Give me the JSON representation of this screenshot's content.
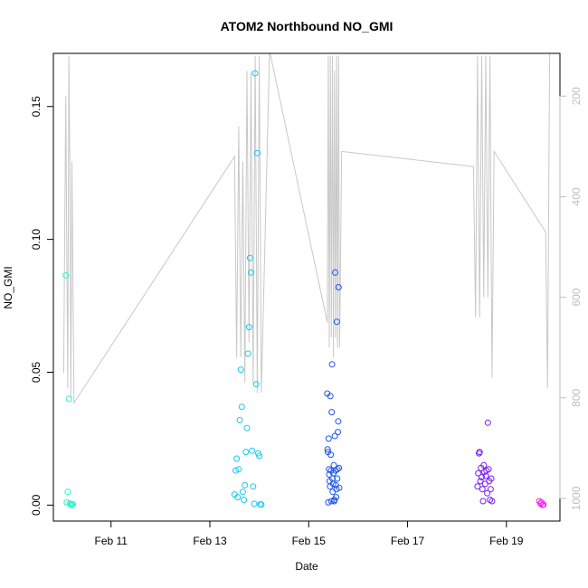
{
  "chart_data": {
    "type": "scatter",
    "title": "ATOM2 Northbound NO_GMI",
    "xlabel": "Date",
    "ylabel": "NO_GMI",
    "x_ticks": [
      "Feb 11",
      "Feb 13",
      "Feb 15",
      "Feb 17",
      "Feb 19"
    ],
    "y_ticks": [
      "0.00",
      "0.05",
      "0.10",
      "0.15"
    ],
    "y_right_ticks": [
      "200",
      "400",
      "600",
      "800",
      "1000"
    ],
    "y_right_axis": "pressure (inverted)",
    "xlim": [
      "2017-02-09 20:00",
      "2017-02-20 02:00"
    ],
    "ylim": [
      -0.006,
      0.17
    ],
    "y_right_lim": [
      1045,
      115
    ],
    "grid": false,
    "colors": {
      "line": "#c8c8c8",
      "series_palette": [
        "#00ffb0",
        "#00d8ff",
        "#0040ff",
        "#8a00ff",
        "#ff00ff"
      ],
      "axis": "#000000",
      "right_axis": "#bebebe"
    },
    "series": [
      {
        "color": "#22f5c8",
        "points": [
          [
            "2017-02-10 02:00",
            0.0865
          ],
          [
            "2017-02-10 02:30",
            0.001
          ],
          [
            "2017-02-10 03:00",
            0.005
          ],
          [
            "2017-02-10 03:30",
            0.04
          ],
          [
            "2017-02-10 04:00",
            0.0006
          ],
          [
            "2017-02-10 04:30",
            0.0002
          ],
          [
            "2017-02-10 05:00",
            0.0001
          ],
          [
            "2017-02-10 05:30",
            0.0004
          ]
        ]
      },
      {
        "color": "#18c8ec",
        "points": [
          [
            "2017-02-13 12:00",
            0.004
          ],
          [
            "2017-02-13 12:30",
            0.013
          ],
          [
            "2017-02-13 13:00",
            0.0175
          ],
          [
            "2017-02-13 13:30",
            0.003
          ],
          [
            "2017-02-13 14:00",
            0.0135
          ],
          [
            "2017-02-13 14:30",
            0.032
          ],
          [
            "2017-02-13 15:00",
            0.051
          ],
          [
            "2017-02-13 15:30",
            0.037
          ],
          [
            "2017-02-13 16:00",
            0.005
          ],
          [
            "2017-02-13 16:30",
            0.002
          ],
          [
            "2017-02-13 17:00",
            0.0075
          ],
          [
            "2017-02-13 17:30",
            0.02
          ],
          [
            "2017-02-13 18:00",
            0.029
          ],
          [
            "2017-02-13 18:30",
            0.057
          ],
          [
            "2017-02-13 19:00",
            0.067
          ],
          [
            "2017-02-13 19:30",
            0.093
          ],
          [
            "2017-02-13 20:00",
            0.0875
          ],
          [
            "2017-02-13 20:30",
            0.0205
          ],
          [
            "2017-02-13 21:00",
            0.007
          ],
          [
            "2017-02-13 21:30",
            0.0005
          ],
          [
            "2017-02-13 22:00",
            0.1625
          ],
          [
            "2017-02-13 22:30",
            0.0455
          ],
          [
            "2017-02-13 23:00",
            0.1325
          ],
          [
            "2017-02-13 23:30",
            0.0195
          ],
          [
            "2017-02-14 00:00",
            0.0185
          ],
          [
            "2017-02-14 00:30",
            0.0003
          ],
          [
            "2017-02-14 01:00",
            0.0002
          ]
        ]
      },
      {
        "color": "#1f55ee",
        "points": [
          [
            "2017-02-15 09:00",
            0.042
          ],
          [
            "2017-02-15 09:10",
            0.021
          ],
          [
            "2017-02-15 09:20",
            0.02
          ],
          [
            "2017-02-15 09:30",
            0.001
          ],
          [
            "2017-02-15 09:40",
            0.025
          ],
          [
            "2017-02-15 09:50",
            0.0135
          ],
          [
            "2017-02-15 10:00",
            0.0115
          ],
          [
            "2017-02-15 10:10",
            0.009
          ],
          [
            "2017-02-15 10:20",
            0.007
          ],
          [
            "2017-02-15 10:30",
            0.041
          ],
          [
            "2017-02-15 10:40",
            0.019
          ],
          [
            "2017-02-15 10:50",
            0.013
          ],
          [
            "2017-02-15 11:00",
            0.0015
          ],
          [
            "2017-02-15 11:10",
            0.035
          ],
          [
            "2017-02-15 11:20",
            0.053
          ],
          [
            "2017-02-15 11:30",
            0.01
          ],
          [
            "2017-02-15 11:40",
            0.005
          ],
          [
            "2017-02-15 11:50",
            0.008
          ],
          [
            "2017-02-15 12:00",
            0.012
          ],
          [
            "2017-02-15 12:10",
            0.015
          ],
          [
            "2017-02-15 12:20",
            0.0015
          ],
          [
            "2017-02-15 12:30",
            0.002
          ],
          [
            "2017-02-15 12:40",
            0.026
          ],
          [
            "2017-02-15 12:50",
            0.0875
          ],
          [
            "2017-02-15 13:00",
            0.013
          ],
          [
            "2017-02-15 13:10",
            0.0075
          ],
          [
            "2017-02-15 13:20",
            0.003
          ],
          [
            "2017-02-15 13:30",
            0.006
          ],
          [
            "2017-02-15 13:40",
            0.069
          ],
          [
            "2017-02-15 13:50",
            0.01
          ],
          [
            "2017-02-15 14:00",
            0.0135
          ],
          [
            "2017-02-15 14:10",
            0.0275
          ],
          [
            "2017-02-15 14:20",
            0.0315
          ],
          [
            "2017-02-15 14:30",
            0.082
          ],
          [
            "2017-02-15 14:40",
            0.014
          ],
          [
            "2017-02-15 14:50",
            0.0065
          ]
        ]
      },
      {
        "color": "#7a1ff0",
        "points": [
          [
            "2017-02-18 10:00",
            0.007
          ],
          [
            "2017-02-18 10:20",
            0.012
          ],
          [
            "2017-02-18 10:40",
            0.0195
          ],
          [
            "2017-02-18 11:00",
            0.02
          ],
          [
            "2017-02-18 11:20",
            0.009
          ],
          [
            "2017-02-18 11:40",
            0.014
          ],
          [
            "2017-02-18 12:00",
            0.0105
          ],
          [
            "2017-02-18 12:20",
            0.006
          ],
          [
            "2017-02-18 12:40",
            0.0015
          ],
          [
            "2017-02-18 13:00",
            0.015
          ],
          [
            "2017-02-18 13:20",
            0.0125
          ],
          [
            "2017-02-18 13:40",
            0.008
          ],
          [
            "2017-02-18 14:00",
            0.011
          ],
          [
            "2017-02-18 14:20",
            0.013
          ],
          [
            "2017-02-18 14:40",
            0.0045
          ],
          [
            "2017-02-18 15:00",
            0.031
          ],
          [
            "2017-02-18 15:20",
            0.0135
          ],
          [
            "2017-02-18 15:40",
            0.009
          ],
          [
            "2017-02-18 16:00",
            0.002
          ],
          [
            "2017-02-18 16:20",
            0.006
          ],
          [
            "2017-02-18 16:40",
            0.01
          ],
          [
            "2017-02-18 17:00",
            0.0015
          ]
        ]
      },
      {
        "color": "#ee22ee",
        "points": [
          [
            "2017-02-19 16:00",
            0.0015
          ],
          [
            "2017-02-19 16:30",
            0.0005
          ],
          [
            "2017-02-19 17:00",
            0.001
          ],
          [
            "2017-02-19 17:30",
            0.0001
          ],
          [
            "2017-02-19 18:00",
            0.0002
          ]
        ]
      }
    ],
    "line_pressure": [
      [
        "2017-02-10 01:00",
        750
      ],
      [
        "2017-02-10 02:00",
        200
      ],
      [
        "2017-02-10 03:00",
        780
      ],
      [
        "2017-02-10 03:30",
        120
      ],
      [
        "2017-02-10 04:00",
        330
      ],
      [
        "2017-02-10 04:30",
        800
      ],
      [
        "2017-02-10 05:00",
        330
      ],
      [
        "2017-02-10 06:00",
        810
      ],
      [
        "2017-02-13 12:00",
        320
      ],
      [
        "2017-02-13 13:00",
        720
      ],
      [
        "2017-02-13 14:00",
        260
      ],
      [
        "2017-02-13 15:00",
        720
      ],
      [
        "2017-02-13 16:00",
        330
      ],
      [
        "2017-02-13 17:00",
        770
      ],
      [
        "2017-02-13 18:00",
        150
      ],
      [
        "2017-02-13 19:00",
        690
      ],
      [
        "2017-02-13 20:00",
        150
      ],
      [
        "2017-02-13 21:00",
        770
      ],
      [
        "2017-02-13 22:00",
        120
      ],
      [
        "2017-02-13 23:00",
        790
      ],
      [
        "2017-02-14 00:00",
        120
      ],
      [
        "2017-02-14 01:00",
        790
      ],
      [
        "2017-02-14 05:00",
        110
      ],
      [
        "2017-02-15 09:00",
        650
      ],
      [
        "2017-02-15 09:30",
        120
      ],
      [
        "2017-02-15 10:00",
        700
      ],
      [
        "2017-02-15 10:30",
        120
      ],
      [
        "2017-02-15 11:00",
        680
      ],
      [
        "2017-02-15 11:30",
        120
      ],
      [
        "2017-02-15 12:00",
        720
      ],
      [
        "2017-02-15 12:30",
        150
      ],
      [
        "2017-02-15 13:00",
        680
      ],
      [
        "2017-02-15 13:30",
        120
      ],
      [
        "2017-02-15 14:00",
        700
      ],
      [
        "2017-02-15 14:30",
        120
      ],
      [
        "2017-02-15 15:00",
        700
      ],
      [
        "2017-02-15 16:00",
        310
      ],
      [
        "2017-02-18 08:00",
        340
      ],
      [
        "2017-02-18 09:00",
        640
      ],
      [
        "2017-02-18 10:00",
        120
      ],
      [
        "2017-02-18 11:00",
        640
      ],
      [
        "2017-02-18 12:00",
        120
      ],
      [
        "2017-02-18 13:00",
        600
      ],
      [
        "2017-02-18 14:00",
        120
      ],
      [
        "2017-02-18 15:00",
        600
      ],
      [
        "2017-02-18 16:00",
        120
      ],
      [
        "2017-02-18 17:00",
        760
      ],
      [
        "2017-02-18 18:00",
        310
      ],
      [
        "2017-02-19 19:00",
        470
      ],
      [
        "2017-02-19 20:00",
        780
      ],
      [
        "2017-02-19 21:00",
        110
      ]
    ]
  }
}
